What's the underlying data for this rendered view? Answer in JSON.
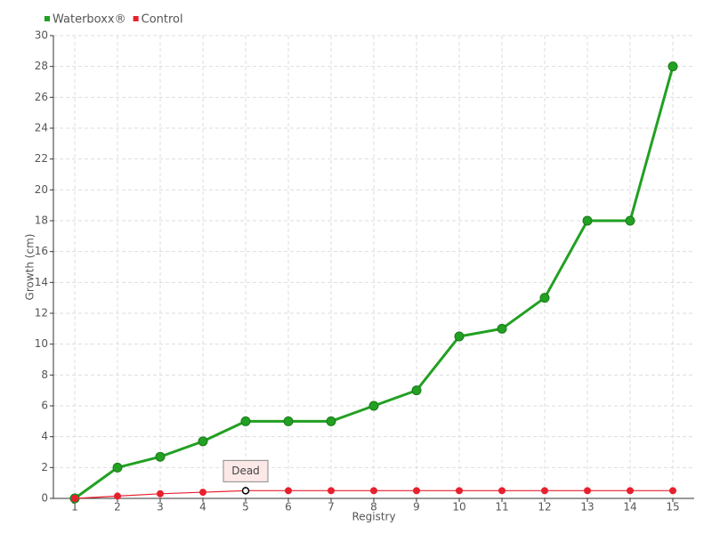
{
  "chart_data": {
    "type": "line",
    "y_label": "Growth (cm)",
    "x_label": "Registry",
    "categories": [
      "1",
      "2",
      "3",
      "4",
      "5",
      "6",
      "7",
      "8",
      "9",
      "10",
      "11",
      "12",
      "13",
      "14",
      "15"
    ],
    "series": [
      {
        "name": "Waterboxx®",
        "color": "#22a022",
        "values": [
          0,
          2,
          2.7,
          3.7,
          5,
          5,
          5,
          6,
          7,
          10.5,
          11,
          13,
          18,
          18,
          28
        ]
      },
      {
        "name": "Control",
        "color": "#e8202e",
        "values": [
          0,
          0.15,
          0.3,
          0.4,
          0.5,
          0.5,
          0.5,
          0.5,
          0.5,
          0.5,
          0.5,
          0.5,
          0.5,
          0.5,
          0.5
        ]
      }
    ],
    "annotations": [
      {
        "text": "Dead",
        "x": "5"
      }
    ],
    "ylim": [
      0,
      30
    ],
    "yticks": [
      0,
      2,
      4,
      6,
      8,
      10,
      12,
      14,
      16,
      18,
      20,
      22,
      24,
      26,
      28,
      30
    ],
    "grid": true,
    "legend": "top-left"
  }
}
